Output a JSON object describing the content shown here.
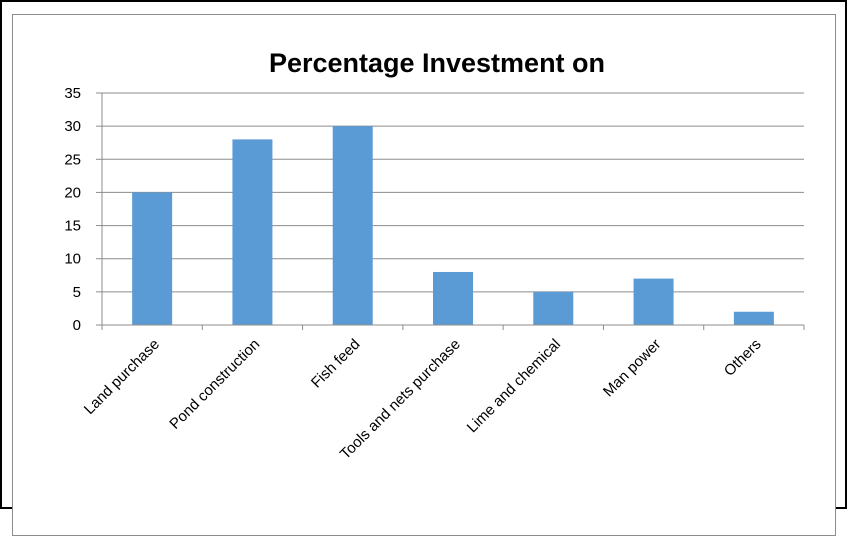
{
  "chart_data": {
    "type": "bar",
    "title": "Percentage Investment on",
    "categories": [
      "Land purchase",
      "Pond construction",
      "Fish feed",
      "Tools and nets purchase",
      "Lime and chemical",
      "Man power",
      "Others"
    ],
    "series": [
      {
        "values": [
          20,
          28,
          30,
          8,
          5,
          7,
          2
        ]
      }
    ],
    "ylim": [
      0,
      35
    ],
    "yticks": [
      0,
      5,
      10,
      15,
      20,
      25,
      30,
      35
    ],
    "grid": true,
    "legend": "none",
    "colors": {
      "bar": "#5b9bd5",
      "grid": "#8c8c8c",
      "axis": "#8c8c8c"
    }
  }
}
